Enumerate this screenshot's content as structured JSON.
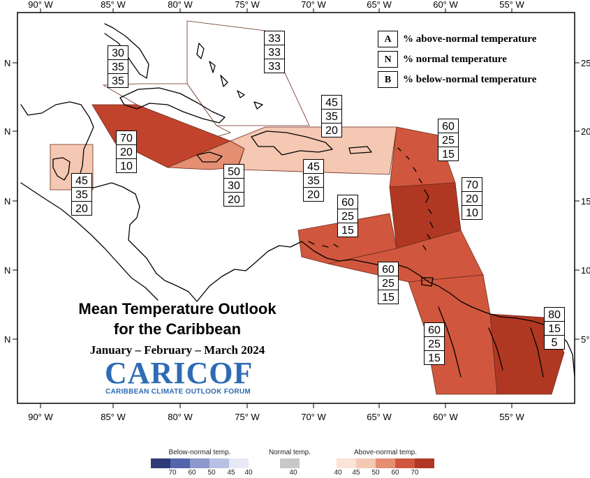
{
  "map": {
    "title_line1": "Mean Temperature Outlook",
    "title_line2": "for the Caribbean",
    "subtitle": "January – February – March 2024",
    "logo_text": "CARICOF",
    "logo_subtext": "CARIBBEAN CLIMATE OUTLOOK FORUM",
    "longitude_labels": [
      "90° W",
      "85° W",
      "80° W",
      "75° W",
      "70° W",
      "65° W",
      "60° W",
      "55° W"
    ],
    "left_latitude_labels": [
      "N",
      "N",
      "N",
      "N",
      "N"
    ],
    "right_latitude_labels": [
      "25",
      "20",
      "15",
      "10",
      "5°"
    ]
  },
  "key": [
    {
      "letter": "A",
      "text": "% above-normal temperature"
    },
    {
      "letter": "N",
      "text": "% normal temperature"
    },
    {
      "letter": "B",
      "text": "% below-normal temperature"
    }
  ],
  "regions": [
    {
      "id": "bahamas",
      "above": "33",
      "normal": "33",
      "below": "33",
      "color": "#ffffff"
    },
    {
      "id": "cuba",
      "above": "30",
      "normal": "35",
      "below": "35",
      "color": "#ffffff"
    },
    {
      "id": "cayman-jamaica-west",
      "above": "70",
      "normal": "20",
      "below": "10",
      "color": "#c1432c"
    },
    {
      "id": "jamaica",
      "above": "50",
      "normal": "30",
      "below": "20",
      "color": "#e48e72"
    },
    {
      "id": "hispaniola-north",
      "above": "45",
      "normal": "35",
      "below": "20",
      "color": "#f5c8b3"
    },
    {
      "id": "hispaniola-south",
      "above": "45",
      "normal": "35",
      "below": "20",
      "color": "#f5c8b3"
    },
    {
      "id": "belize",
      "above": "45",
      "normal": "35",
      "below": "20",
      "color": "#f5c8b3"
    },
    {
      "id": "northern-leewards",
      "above": "60",
      "normal": "25",
      "below": "15",
      "color": "#d0573d"
    },
    {
      "id": "windwards",
      "above": "70",
      "normal": "20",
      "below": "10",
      "color": "#b03823"
    },
    {
      "id": "abc-islands",
      "above": "60",
      "normal": "25",
      "below": "15",
      "color": "#d0573d"
    },
    {
      "id": "trinidad",
      "above": "60",
      "normal": "25",
      "below": "15",
      "color": "#d0573d"
    },
    {
      "id": "guyana",
      "above": "60",
      "normal": "25",
      "below": "15",
      "color": "#d0573d"
    },
    {
      "id": "suriname",
      "above": "80",
      "normal": "15",
      "below": "5",
      "color": "#b03823"
    }
  ],
  "colorbar": {
    "below_title": "Below-normal temp.",
    "below_ticks": [
      "70",
      "60",
      "50",
      "45",
      "40"
    ],
    "below_colors": [
      "#2e3a78",
      "#5366ad",
      "#8c98cc",
      "#b9c1e2",
      "#e6e9f5"
    ],
    "normal_title": "Normal temp.",
    "normal_ticks": [
      "40"
    ],
    "normal_color": "#c8c8c8",
    "above_title": "Above-normal temp.",
    "above_ticks": [
      "40",
      "45",
      "50",
      "60",
      "70"
    ],
    "above_colors": [
      "#fbe3d7",
      "#f5c8b3",
      "#e48e72",
      "#d0573d",
      "#b03823"
    ]
  }
}
